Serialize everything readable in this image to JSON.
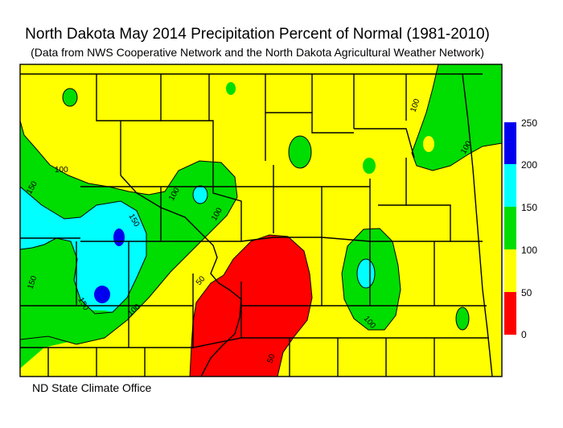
{
  "title": "North Dakota May 2014 Precipitation Percent of Normal (1981-2010)",
  "subtitle": "(Data from NWS Cooperative Network and the North Dakota Agricultural Weather Network)",
  "footer": "ND State Climate Office",
  "colors": {
    "c0_50": "#ff0000",
    "c50_100": "#ffff00",
    "c100_150": "#00dd00",
    "c150_200": "#00ffff",
    "c200_250": "#0000ee",
    "boundary": "#000000"
  },
  "legend": {
    "ticks": [
      "250",
      "200",
      "150",
      "100",
      "50",
      "0"
    ],
    "bins": [
      {
        "range": "200-250",
        "color": "#0000ee"
      },
      {
        "range": "150-200",
        "color": "#00ffff"
      },
      {
        "range": "100-150",
        "color": "#00dd00"
      },
      {
        "range": "50-100",
        "color": "#ffff00"
      },
      {
        "range": "0-50",
        "color": "#ff0000"
      }
    ]
  },
  "contour_labels": {
    "l1": "100",
    "l2": "150",
    "l3": "150",
    "l4": "100",
    "l5": "100",
    "l6": "150",
    "l7": "150",
    "l8": "100",
    "l9": "50",
    "l10": "50",
    "l11": "100",
    "l12": "100",
    "l13": "100"
  }
}
